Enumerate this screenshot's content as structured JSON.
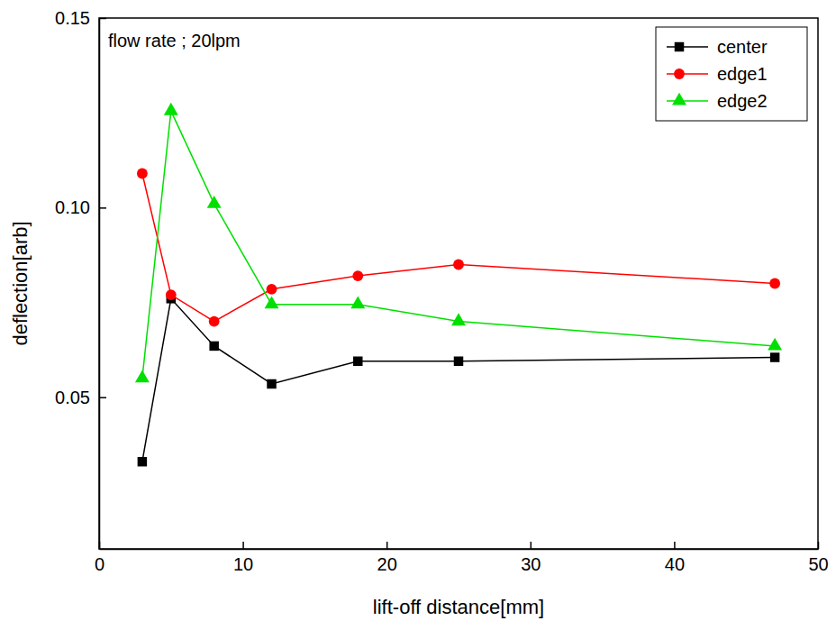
{
  "chart_data": {
    "type": "line",
    "x_label": "lift-off distance[mm]",
    "y_label": "deflection[arb]",
    "annotation": "flow rate ; 20lpm",
    "x": [
      3,
      5,
      8,
      12,
      18,
      25,
      47
    ],
    "series": [
      {
        "name": "center",
        "color": "#000000",
        "marker": "square",
        "values": [
          0.033,
          0.076,
          0.0635,
          0.0535,
          0.0595,
          0.0595,
          0.0605
        ]
      },
      {
        "name": "edge1",
        "color": "#ff0000",
        "marker": "circle",
        "values": [
          0.109,
          0.077,
          0.07,
          0.0785,
          0.082,
          0.085,
          0.08
        ]
      },
      {
        "name": "edge2",
        "color": "#00e000",
        "marker": "triangle",
        "values": [
          0.055,
          0.1255,
          0.101,
          0.0745,
          0.0745,
          0.07,
          0.0635
        ]
      }
    ],
    "xlim": [
      0,
      50
    ],
    "xticks": [
      0,
      10,
      20,
      30,
      40,
      50
    ],
    "ylim": [
      0.01,
      0.15
    ],
    "yticks": [
      0.05,
      {
        "value": 0.1,
        "label": "0.10"
      },
      0.15
    ],
    "grid": false,
    "legend": "top-right"
  }
}
